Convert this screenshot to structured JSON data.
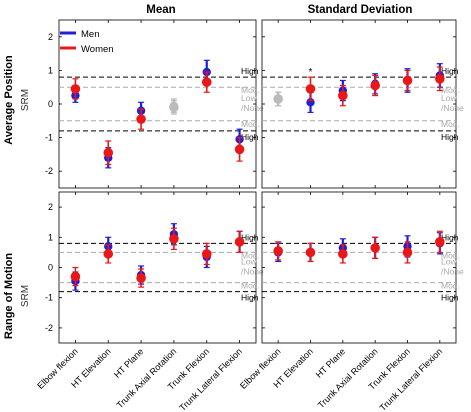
{
  "figure": {
    "col_titles": [
      "Mean",
      "Standard Deviation"
    ],
    "row_titles": [
      "Average Position",
      "Range of Motion"
    ],
    "y_unit": "SRM",
    "legend": {
      "placement": "top-left",
      "entries": [
        "Men",
        "Women"
      ]
    },
    "thresholds": [
      {
        "label": "High",
        "value": 0.8,
        "style": "dashed",
        "color": "#000000"
      },
      {
        "label": "Mod.",
        "value": 0.5,
        "style": "dashed",
        "color": "#aaaaaa"
      },
      {
        "label": "Low /None",
        "value": 0,
        "style": "none",
        "color": "#aaaaaa"
      }
    ]
  },
  "chart_data": [
    {
      "type": "scatter",
      "panel": "top-left",
      "title": "Mean",
      "row_title": "Average Position",
      "ylabel": "SRM",
      "ylim": [
        -2.5,
        2.5
      ],
      "yticks": [
        2,
        1,
        0,
        -1,
        -2
      ],
      "categories": [
        "Elbow flexion",
        "HT Elevation",
        "HT Plane",
        "Trunk Axial Rotation",
        "Trunk Flexion",
        "Trunk Lateral Flexion"
      ],
      "series": [
        {
          "name": "Men",
          "color": "#1f1fd6",
          "values": [
            0.25,
            -1.6,
            -0.2,
            -0.05,
            0.95,
            -1.05
          ],
          "errors": [
            0.2,
            0.3,
            0.25,
            0.2,
            0.35,
            0.3
          ]
        },
        {
          "name": "Women",
          "color": "#e81818",
          "values": [
            0.45,
            -1.45,
            -0.45,
            -0.1,
            0.65,
            -1.35
          ],
          "errors": [
            0.3,
            0.35,
            0.3,
            0.2,
            0.3,
            0.35
          ]
        }
      ],
      "grey_categories": [
        "Trunk Axial Rotation"
      ],
      "annotations": []
    },
    {
      "type": "scatter",
      "panel": "top-right",
      "title": "Standard Deviation",
      "row_title": "Average Position",
      "ylabel": "SRM",
      "ylim": [
        -2.5,
        2.5
      ],
      "yticks": [
        2,
        1,
        0,
        -1,
        -2
      ],
      "categories": [
        "Elbow flexion",
        "HT Elevation",
        "HT Plane",
        "Trunk Axial Rotation",
        "Trunk Flexion",
        "Trunk Lateral Flexion"
      ],
      "series": [
        {
          "name": "Men",
          "color": "#1f1fd6",
          "values": [
            0.15,
            0.05,
            0.4,
            0.6,
            0.7,
            0.85
          ],
          "errors": [
            0.2,
            0.3,
            0.3,
            0.3,
            0.35,
            0.35
          ]
        },
        {
          "name": "Women",
          "color": "#e81818",
          "values": [
            0.15,
            0.45,
            0.25,
            0.55,
            0.7,
            0.75
          ],
          "errors": [
            0.2,
            0.35,
            0.3,
            0.3,
            0.3,
            0.35
          ]
        }
      ],
      "grey_categories": [
        "Elbow flexion"
      ],
      "annotations": [
        {
          "text": "*",
          "category": "HT Elevation",
          "value": 0.95
        }
      ]
    },
    {
      "type": "scatter",
      "panel": "bottom-left",
      "title": "Mean",
      "row_title": "Range of Motion",
      "ylabel": "SRM",
      "ylim": [
        -2.5,
        2.5
      ],
      "yticks": [
        2,
        1,
        0,
        -1,
        -2
      ],
      "categories": [
        "Elbow flexion",
        "HT Elevation",
        "HT Plane",
        "Trunk Axial Rotation",
        "Trunk Flexion",
        "Trunk Lateral Flexion"
      ],
      "series": [
        {
          "name": "Men",
          "color": "#1f1fd6",
          "values": [
            -0.45,
            0.7,
            -0.25,
            1.1,
            0.35,
            0.85
          ],
          "errors": [
            0.3,
            0.3,
            0.3,
            0.35,
            0.35,
            0.35
          ]
        },
        {
          "name": "Women",
          "color": "#e81818",
          "values": [
            -0.3,
            0.45,
            -0.35,
            0.95,
            0.45,
            0.85
          ],
          "errors": [
            0.3,
            0.3,
            0.3,
            0.35,
            0.35,
            0.35
          ]
        }
      ],
      "grey_categories": [],
      "annotations": []
    },
    {
      "type": "scatter",
      "panel": "bottom-right",
      "title": "Standard Deviation",
      "row_title": "Range of Motion",
      "ylabel": "SRM",
      "ylim": [
        -2.5,
        2.5
      ],
      "yticks": [
        2,
        1,
        0,
        -1,
        -2
      ],
      "categories": [
        "Elbow flexion",
        "HT Elevation",
        "HT Plane",
        "Trunk Axial Rotation",
        "Trunk Flexion",
        "Trunk Lateral Flexion"
      ],
      "series": [
        {
          "name": "Men",
          "color": "#1f1fd6",
          "values": [
            0.5,
            0.5,
            0.65,
            0.65,
            0.7,
            0.8
          ],
          "errors": [
            0.3,
            0.3,
            0.3,
            0.35,
            0.35,
            0.35
          ]
        },
        {
          "name": "Women",
          "color": "#e81818",
          "values": [
            0.55,
            0.5,
            0.45,
            0.65,
            0.5,
            0.85
          ],
          "errors": [
            0.3,
            0.3,
            0.3,
            0.35,
            0.35,
            0.35
          ]
        }
      ],
      "grey_categories": [],
      "annotations": []
    }
  ]
}
